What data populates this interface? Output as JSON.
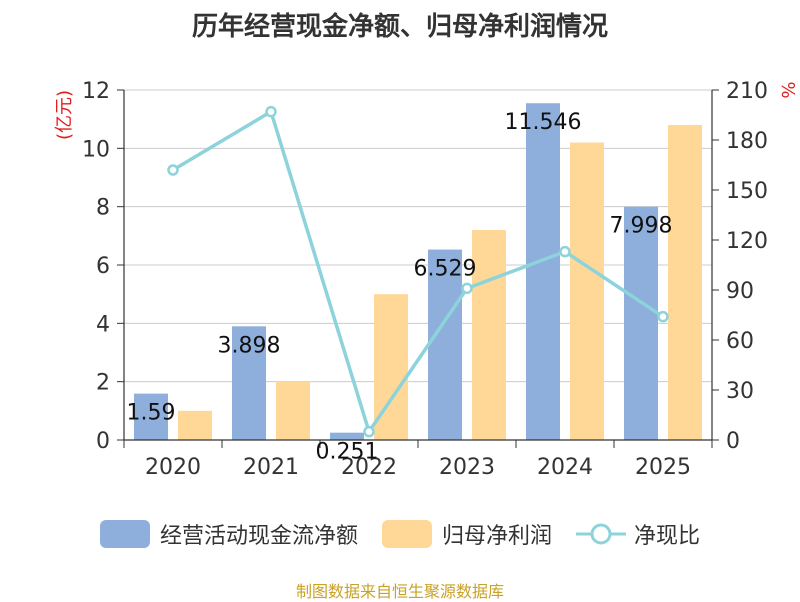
{
  "chart_data": {
    "type": "bar+line",
    "title": "历年经营现金净额、归母净利润情况",
    "categories": [
      "2020",
      "2021",
      "2022",
      "2023",
      "2024",
      "2025"
    ],
    "y_left": {
      "label": "(亿元)",
      "range": [
        0,
        12
      ],
      "ticks": [
        0,
        2,
        4,
        6,
        8,
        10,
        12
      ]
    },
    "y_right": {
      "label": "%",
      "range": [
        0,
        210
      ],
      "ticks": [
        0,
        30,
        60,
        90,
        120,
        150,
        180,
        210
      ]
    },
    "series": [
      {
        "name": "经营活动现金流净额",
        "type": "bar",
        "axis": "left",
        "color": "#8eaedc",
        "values": [
          1.59,
          3.898,
          0.251,
          6.529,
          11.546,
          7.998
        ],
        "labels": [
          "1.59",
          "3.898",
          "0.251",
          "6.529",
          "11.546",
          "7.998"
        ]
      },
      {
        "name": "归母净利润",
        "type": "bar",
        "axis": "left",
        "color": "#ffd898",
        "values": [
          1.0,
          2.0,
          5.0,
          7.2,
          10.2,
          10.8
        ]
      },
      {
        "name": "净现比",
        "type": "line",
        "axis": "right",
        "color": "#8dd3db",
        "values": [
          162,
          197,
          5,
          91,
          113,
          74
        ]
      }
    ],
    "grid": true,
    "legend_position": "bottom"
  },
  "source_text": "制图数据来自恒生聚源数据库"
}
